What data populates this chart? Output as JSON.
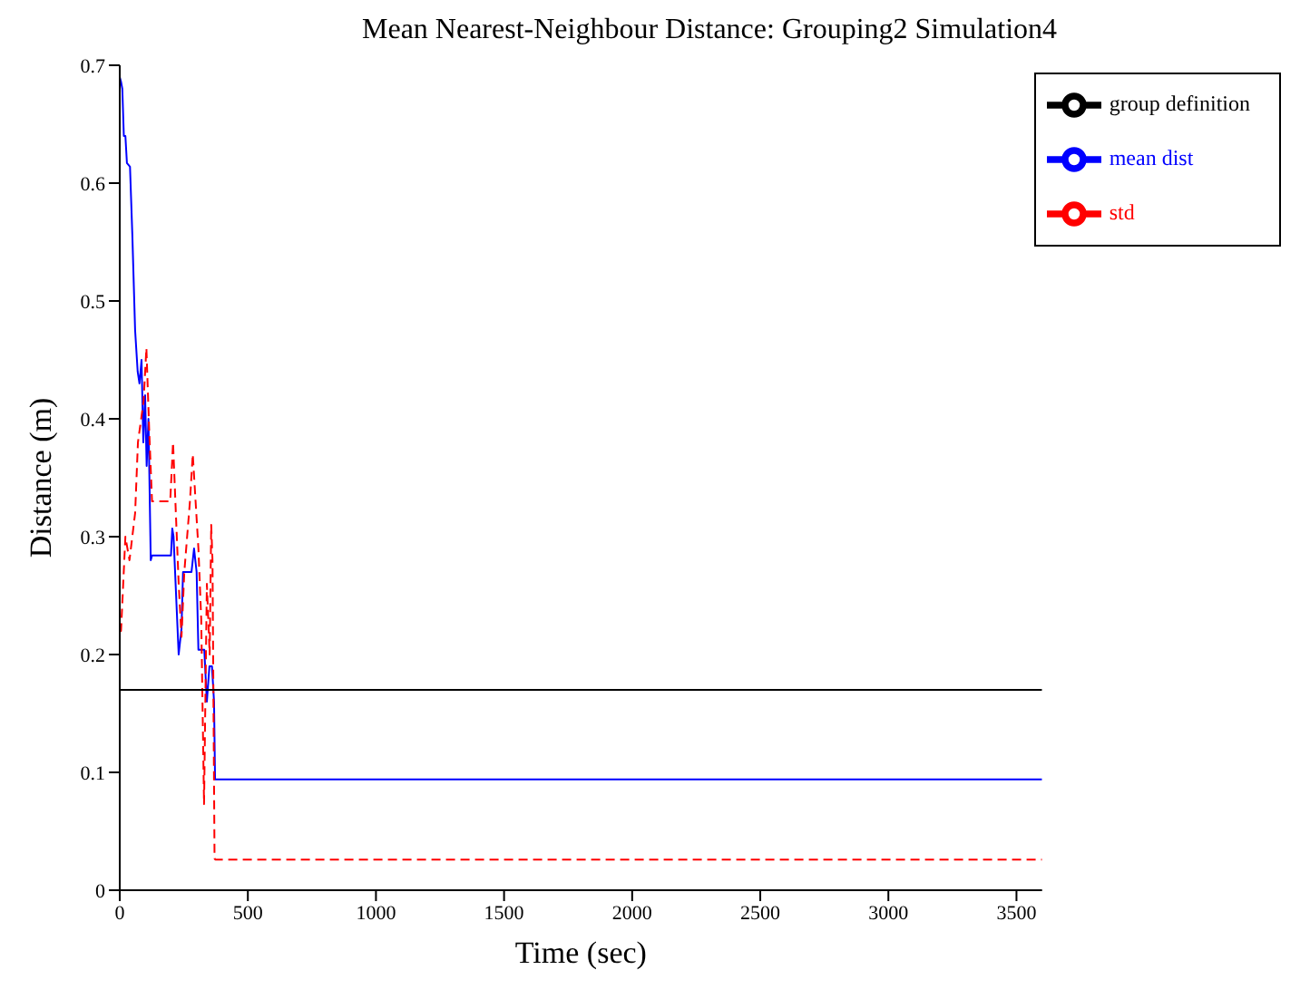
{
  "chart_data": {
    "type": "line",
    "title": "Mean Nearest-Neighbour Distance: Grouping2 Simulation4",
    "xlabel": "Time (sec)",
    "ylabel": "Distance (m)",
    "series": [
      {
        "name": "mean dist",
        "color": "#0000ff",
        "line_style": "solid",
        "x": [
          0,
          5,
          10,
          16,
          22,
          28,
          40,
          49,
          60,
          70,
          77,
          85,
          92,
          99,
          105,
          112,
          121,
          126,
          200,
          205,
          210,
          230,
          241,
          247,
          280,
          290,
          300,
          307,
          330,
          340,
          350,
          360,
          368,
          372,
          3600
        ],
        "values": [
          0.69,
          0.686,
          0.68,
          0.64,
          0.64,
          0.617,
          0.614,
          0.557,
          0.475,
          0.44,
          0.43,
          0.45,
          0.38,
          0.42,
          0.36,
          0.4,
          0.28,
          0.284,
          0.284,
          0.307,
          0.3,
          0.2,
          0.222,
          0.27,
          0.27,
          0.29,
          0.27,
          0.204,
          0.204,
          0.16,
          0.19,
          0.19,
          0.16,
          0.094,
          0.094
        ]
      },
      {
        "name": "std",
        "color": "#ff0000",
        "line_style": "dashed",
        "x": [
          0,
          5,
          22,
          38,
          60,
          71,
          93,
          104,
          115,
          126,
          197,
          208,
          230,
          241,
          252,
          263,
          274,
          285,
          296,
          307,
          318,
          329,
          340,
          351,
          357,
          362,
          370,
          373,
          3600
        ],
        "values": [
          0.22,
          0.22,
          0.3,
          0.28,
          0.32,
          0.38,
          0.415,
          0.46,
          0.39,
          0.33,
          0.33,
          0.38,
          0.26,
          0.215,
          0.27,
          0.3,
          0.33,
          0.37,
          0.33,
          0.29,
          0.23,
          0.073,
          0.26,
          0.2,
          0.31,
          0.28,
          0.027,
          0.026,
          0.026
        ]
      },
      {
        "name": "group definition",
        "color": "#000000",
        "line_style": "solid",
        "x": [
          0,
          3600
        ],
        "values": [
          0.17,
          0.17
        ]
      }
    ],
    "xlim": [
      0,
      3600
    ],
    "xticks": [
      0,
      500,
      1000,
      1500,
      2000,
      2500,
      3000,
      3500
    ],
    "ylim": [
      0,
      0.7
    ],
    "yticks": [
      0,
      0.1,
      0.2,
      0.3,
      0.4,
      0.5,
      0.6,
      0.7
    ],
    "legend": "top right",
    "marker": "none"
  }
}
